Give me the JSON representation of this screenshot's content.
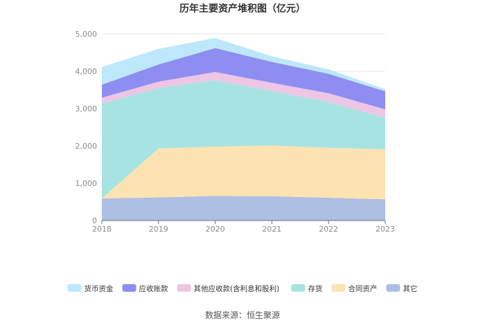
{
  "chart_data": {
    "type": "area",
    "stacked": true,
    "title": "历年主要资产堆积图（亿元）",
    "source": "数据来源：恒生聚源",
    "x": [
      "2018",
      "2019",
      "2020",
      "2021",
      "2022",
      "2023"
    ],
    "ylim": [
      0,
      5000
    ],
    "yticks": [
      "0",
      "1,000",
      "2,000",
      "3,000",
      "4,000",
      "5,000"
    ],
    "grid": true,
    "legend_position": "bottom",
    "series": [
      {
        "name": "其它",
        "color": "#aebfe4",
        "values": [
          590,
          620,
          660,
          650,
          610,
          570
        ]
      },
      {
        "name": "合同资产",
        "color": "#fde3b2",
        "values": [
          0,
          1310,
          1320,
          1360,
          1340,
          1340
        ]
      },
      {
        "name": "存货",
        "color": "#a8e3e3",
        "values": [
          2550,
          1620,
          1780,
          1460,
          1230,
          840
        ]
      },
      {
        "name": "其他应收款(含利息和股利)",
        "color": "#edc6e5",
        "values": [
          150,
          170,
          220,
          220,
          230,
          230
        ]
      },
      {
        "name": "应收账款",
        "color": "#8d8df2",
        "values": [
          350,
          460,
          640,
          560,
          520,
          480
        ]
      },
      {
        "name": "货币资金",
        "color": "#bde8fb",
        "values": [
          470,
          420,
          270,
          150,
          120,
          60
        ]
      }
    ],
    "legend_order": [
      "货币资金",
      "应收账款",
      "其他应收款(含利息和股利)",
      "存货",
      "合同资产",
      "其它"
    ]
  }
}
